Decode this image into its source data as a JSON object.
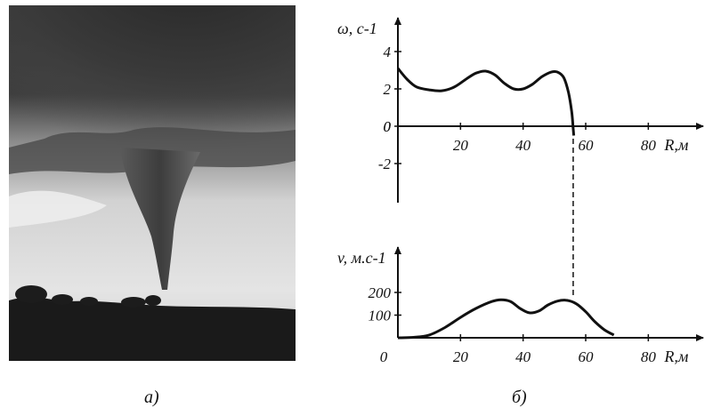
{
  "captions": {
    "a": "а)",
    "b": "б)"
  },
  "photo": {
    "subject": "tornado-photo"
  },
  "colors": {
    "ink": "#111111",
    "sky_dark": "#3a3a3a",
    "sky_light": "#d9d9d9",
    "ground": "#1a1a1a"
  },
  "chart_data": [
    {
      "type": "line",
      "title": "",
      "ylabel": "ω, с-1",
      "xlabel": "R,м",
      "xlim": [
        0,
        85
      ],
      "ylim": [
        -4,
        5
      ],
      "xticks": [
        20,
        40,
        60,
        80
      ],
      "xtick_labels": [
        "20",
        "40",
        "60",
        "80"
      ],
      "yticks": [
        4,
        2,
        0,
        -2
      ],
      "ytick_labels": [
        "4",
        "2",
        "0",
        "-2"
      ],
      "grid": false,
      "series": [
        {
          "x": [
            0,
            3,
            6,
            10,
            14,
            18,
            22,
            25,
            28,
            31,
            34,
            37,
            40,
            43,
            46,
            49,
            51,
            53,
            54.5,
            55.5,
            56,
            56.2
          ],
          "y": [
            3.1,
            2.5,
            2.1,
            1.95,
            1.9,
            2.1,
            2.55,
            2.85,
            2.95,
            2.75,
            2.3,
            2.0,
            2.0,
            2.25,
            2.65,
            2.9,
            2.9,
            2.6,
            1.8,
            0.8,
            -0.1,
            -0.5
          ]
        }
      ]
    },
    {
      "type": "line",
      "title": "",
      "ylabel": "v, м.с-1",
      "xlabel": "R,м",
      "xlim": [
        0,
        85
      ],
      "ylim": [
        0,
        290
      ],
      "xticks": [
        0,
        20,
        40,
        60,
        80
      ],
      "xtick_labels": [
        "0",
        "20",
        "40",
        "60",
        "80"
      ],
      "yticks": [
        200,
        100
      ],
      "ytick_labels": [
        "200",
        "100"
      ],
      "grid": false,
      "series": [
        {
          "x": [
            0,
            5,
            10,
            15,
            20,
            25,
            30,
            33,
            36,
            39,
            42,
            45,
            48,
            51,
            54,
            57,
            60,
            63,
            66,
            69
          ],
          "y": [
            0,
            2,
            12,
            45,
            90,
            130,
            160,
            168,
            160,
            130,
            110,
            118,
            145,
            162,
            165,
            150,
            115,
            70,
            35,
            12
          ]
        }
      ]
    }
  ]
}
